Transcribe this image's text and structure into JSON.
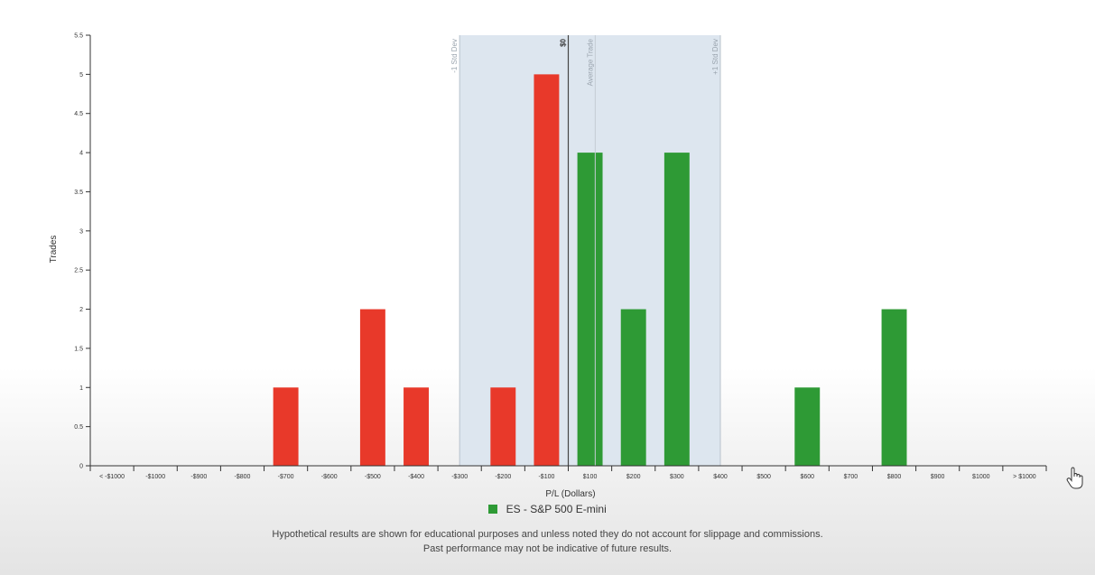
{
  "chart_data": {
    "type": "bar",
    "xlabel": "P/L (Dollars)",
    "ylabel": "Trades",
    "ylim": [
      0,
      5.5
    ],
    "yticks": [
      "0",
      "0.5",
      "1",
      "1.5",
      "2",
      "2.5",
      "3",
      "3.5",
      "4",
      "4.5",
      "5",
      "5.5"
    ],
    "categories": [
      "< -$1000",
      "-$1000",
      "-$900",
      "-$800",
      "-$700",
      "-$600",
      "-$500",
      "-$400",
      "-$300",
      "-$200",
      "-$100",
      "$100",
      "$200",
      "$300",
      "$400",
      "$500",
      "$600",
      "$700",
      "$800",
      "$900",
      "$1000",
      "> $1000"
    ],
    "values": [
      0,
      0,
      0,
      0,
      1,
      0,
      2,
      1,
      0,
      1,
      5,
      4,
      2,
      4,
      0,
      0,
      1,
      0,
      2,
      0,
      0,
      0
    ],
    "colors": {
      "loss": "#e8392a",
      "gain": "#2e9a35",
      "band": "#dde6ef",
      "band_line": "#b8c2cc",
      "zero_line": "#444444"
    },
    "std_dev_band": {
      "low_index": 8,
      "high_index": 14,
      "low_label": "-1 Std Dev",
      "high_label": "+1 Std Dev"
    },
    "zero_line": {
      "label": "$0"
    },
    "average_trade": {
      "label": "Average Trade"
    },
    "legend": {
      "label": "ES - S&P 500 E-mini",
      "color": "#2e9a35",
      "placement": "bottom"
    },
    "grid": false
  },
  "disclaimer": {
    "line1": "Hypothetical results are shown for educational purposes and unless noted they do not account for slippage and commissions.",
    "line2": "Past performance may not be indicative of future results."
  },
  "cursor": {
    "icon": "hand-pointer-icon"
  }
}
